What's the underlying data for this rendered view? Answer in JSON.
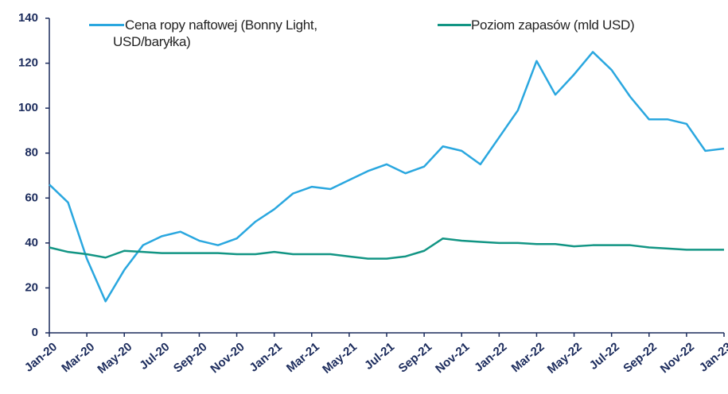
{
  "chart_data": {
    "type": "line",
    "categories": [
      "Jan-20",
      null,
      "Mar-20",
      null,
      "May-20",
      null,
      "Jul-20",
      null,
      "Sep-20",
      null,
      "Nov-20",
      null,
      "Jan-21",
      null,
      "Mar-21",
      null,
      "May-21",
      null,
      "Jul-21",
      null,
      "Sep-21",
      null,
      "Nov-21",
      null,
      "Jan-22",
      null,
      "Mar-22",
      null,
      "May-22",
      null,
      "Jul-22",
      null,
      "Sep-22",
      null,
      "Nov-22",
      null,
      "Jan-23"
    ],
    "series": [
      {
        "name": "Cena ropy naftowej (Bonny Light, USD/baryłka)",
        "color": "#2aa7df",
        "values": [
          66,
          58,
          33,
          14,
          28,
          39,
          43,
          45,
          41,
          39,
          42,
          49.5,
          55,
          62,
          65,
          64,
          68,
          72,
          75,
          71,
          74,
          83,
          81,
          75,
          87,
          99,
          121,
          106,
          115,
          125,
          117,
          105,
          95,
          95,
          93,
          81,
          82
        ]
      },
      {
        "name": "Poziom zapasów (mld USD)",
        "color": "#129584",
        "values": [
          38,
          36,
          35,
          33.5,
          36.5,
          36,
          35.5,
          35.5,
          35.5,
          35.5,
          35,
          35,
          36,
          35,
          35,
          35,
          34,
          33,
          33,
          34,
          36.5,
          42,
          41,
          40.5,
          40,
          40,
          39.5,
          39.5,
          38.5,
          39,
          39,
          39,
          38,
          37.5,
          37,
          37,
          37
        ]
      }
    ],
    "ylim": [
      0,
      140
    ],
    "yticks": [
      0,
      20,
      40,
      60,
      80,
      100,
      120,
      140
    ],
    "grid": false
  }
}
